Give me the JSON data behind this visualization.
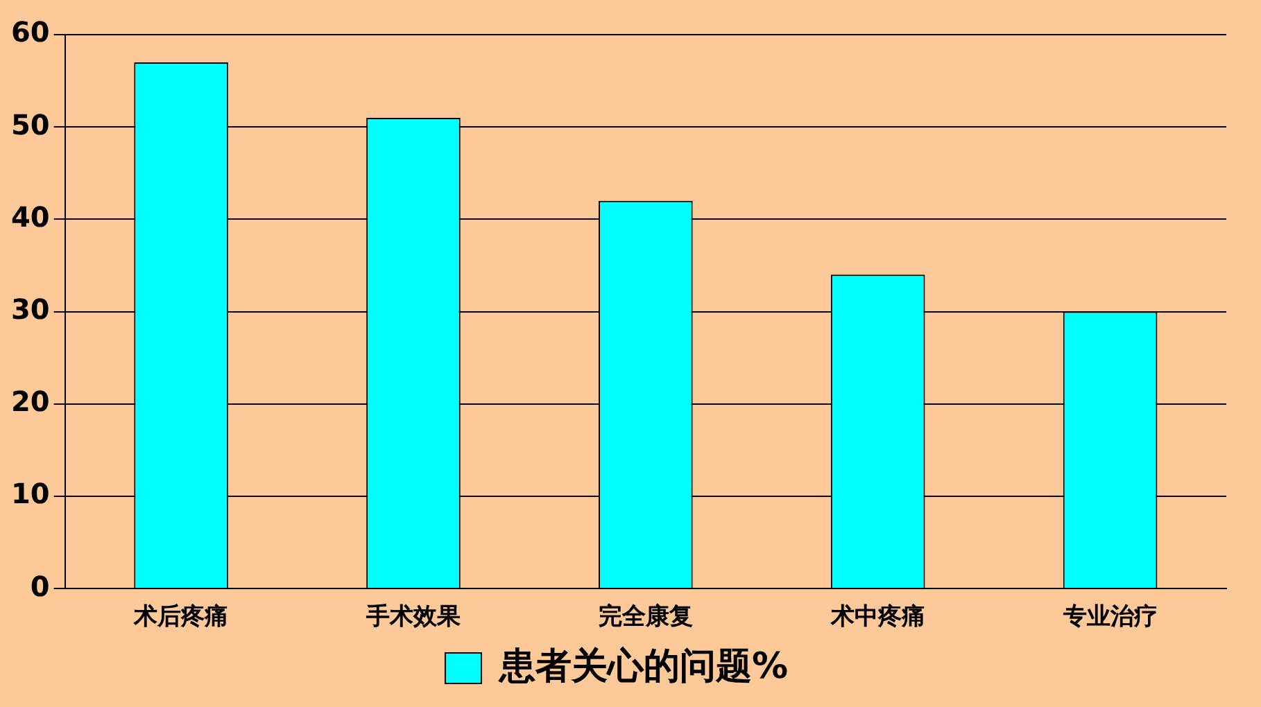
{
  "chart_data": {
    "type": "bar",
    "categories": [
      "术后疼痛",
      "手术效果",
      "完全康复",
      "术中疼痛",
      "专业治疗"
    ],
    "series": [
      {
        "name": "患者关心的问题%",
        "color": "#00ffff",
        "values": [
          57,
          51,
          42,
          34,
          30
        ]
      }
    ],
    "ylim": [
      0,
      60
    ],
    "yticks": [
      0,
      10,
      20,
      30,
      40,
      50,
      60
    ],
    "grid": "y",
    "legend": "bottom"
  }
}
